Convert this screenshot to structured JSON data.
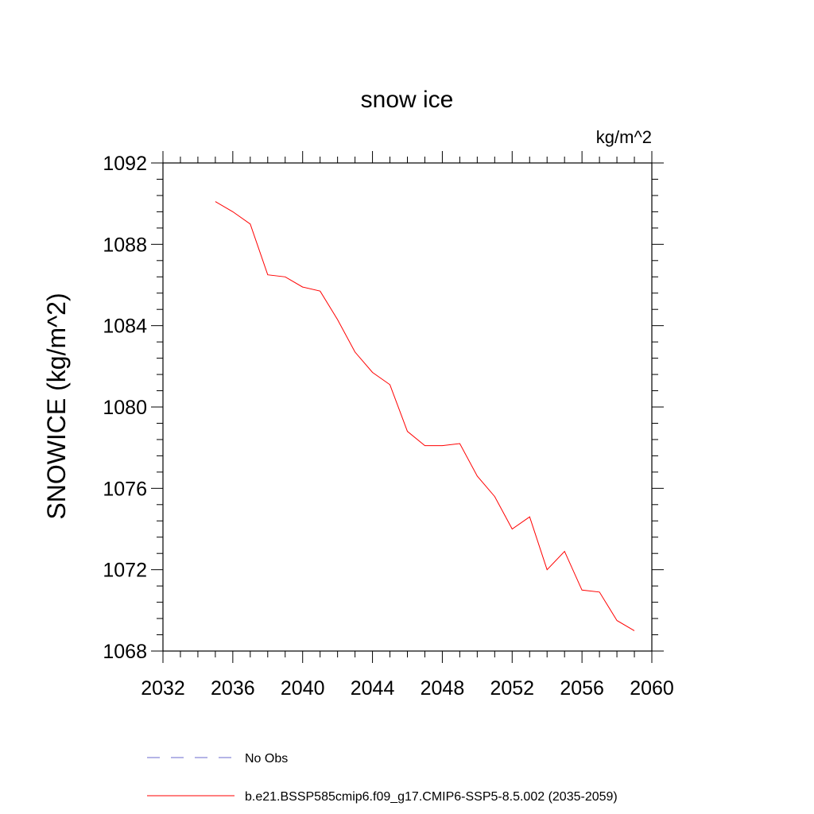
{
  "chart_data": {
    "type": "line",
    "title": "snow ice",
    "units_label": "kg/m^2",
    "ylabel": "SNOWICE  (kg/m^2)",
    "xlabel": "",
    "xlim": [
      2032,
      2060
    ],
    "ylim": [
      1068,
      1092
    ],
    "xticks": [
      2032,
      2036,
      2040,
      2044,
      2048,
      2052,
      2056,
      2060
    ],
    "yticks": [
      1068,
      1072,
      1076,
      1080,
      1084,
      1088,
      1092
    ],
    "grid": false,
    "legend_position": "bottom",
    "series": [
      {
        "name": "b.e21.BSSP585cmip6.f09_g17.CMIP6-SSP5-8.5.002 (2035-2059)",
        "color": "#ff0000",
        "style": "solid",
        "x": [
          2035,
          2036,
          2037,
          2038,
          2039,
          2040,
          2041,
          2042,
          2043,
          2044,
          2045,
          2046,
          2047,
          2048,
          2049,
          2050,
          2051,
          2052,
          2053,
          2054,
          2055,
          2056,
          2057,
          2058,
          2059
        ],
        "y": [
          1090.1,
          1089.6,
          1089.0,
          1086.5,
          1086.4,
          1085.9,
          1085.7,
          1084.3,
          1082.7,
          1081.7,
          1081.1,
          1078.8,
          1078.1,
          1078.1,
          1078.2,
          1076.6,
          1075.6,
          1074.0,
          1074.6,
          1072.0,
          1072.9,
          1071.0,
          1070.9,
          1069.5,
          1069.0
        ]
      }
    ],
    "legend": [
      {
        "label": "No Obs",
        "color": "#6a6acd",
        "style": "dashed"
      },
      {
        "label": "b.e21.BSSP585cmip6.f09_g17.CMIP6-SSP5-8.5.002 (2035-2059)",
        "color": "#ff0000",
        "style": "solid"
      }
    ]
  }
}
